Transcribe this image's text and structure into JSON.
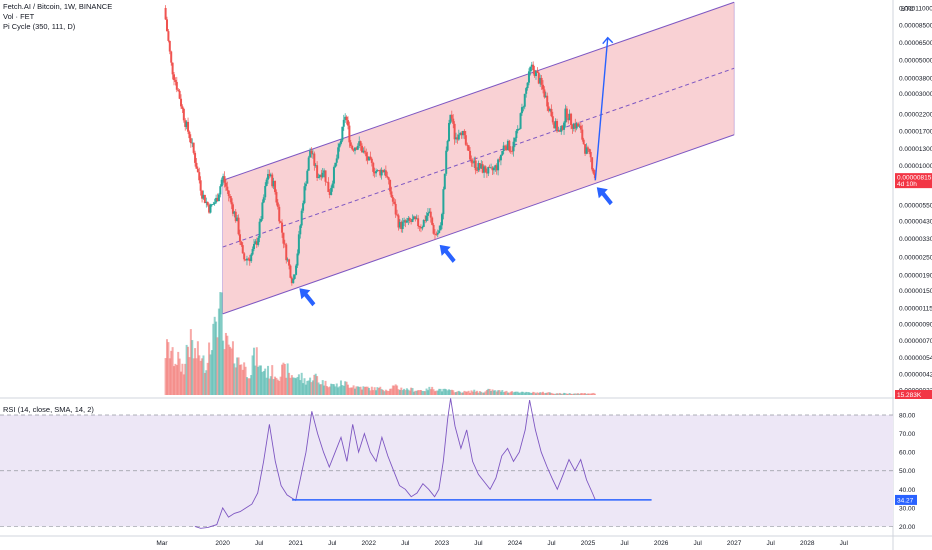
{
  "header": {
    "title": "Fetch.AI / Bitcoin, 1W, BINANCE",
    "vol": "Vol · FET",
    "pi": "Pi Cycle (350, 111, D)",
    "currency": "BTC",
    "rsi_label": "RSI (14, close, SMA, 14, 2)"
  },
  "price_tag": {
    "value": "0.00000815",
    "countdown": "4d 10h",
    "color": "#f23645"
  },
  "vol_tag": {
    "value": "15.283K",
    "color": "#f23645"
  },
  "rsi_tag": {
    "value": "34.27",
    "color": "#2962ff"
  },
  "chart_data": [
    {
      "type": "candlestick",
      "ylabel": "BTC",
      "y_scale": "log",
      "price_ticks": [
        "0.00011000",
        "0.00008500",
        "0.00006500",
        "0.00005000",
        "0.00003800",
        "0.00003000",
        "0.00002200",
        "0.00001700",
        "0.00001300",
        "0.00001000",
        "0.00000750",
        "0.00000550",
        "0.00000430",
        "0.00000330",
        "0.00000250",
        "0.00000190",
        "0.00000150",
        "0.00000115",
        "0.00000090",
        "0.00000070",
        "0.00000054",
        "0.00000042",
        "0.00000033"
      ],
      "x_ticks": [
        "Mar",
        "2020",
        "Jul",
        "2021",
        "Jul",
        "2022",
        "Jul",
        "2023",
        "Jul",
        "2024",
        "Jul",
        "2025",
        "Jul",
        "2026",
        "Jul",
        "2027",
        "Jul",
        "2028",
        "Jul"
      ],
      "colors": {
        "up": "#26a69a",
        "down": "#ef5350",
        "channel_fill": "#f8c9cc",
        "channel_line": "#7e57c2",
        "projection": "#2962ff"
      },
      "series": [
        {
          "values": [
            [
              2019.2,
              0.00011
            ],
            [
              2019.3,
              4.5e-05
            ],
            [
              2019.4,
              3e-05
            ],
            [
              2019.48,
              2e-05
            ],
            [
              2019.56,
              1.5e-05
            ],
            [
              2019.64,
              1e-05
            ],
            [
              2019.72,
              6.5e-06
            ],
            [
              2019.82,
              5.2e-06
            ],
            [
              2019.92,
              6e-06
            ],
            [
              2020.0,
              8.5e-06
            ],
            [
              2020.1,
              6e-06
            ],
            [
              2020.2,
              4.2e-06
            ],
            [
              2020.28,
              2.4e-06
            ],
            [
              2020.38,
              2.5e-06
            ],
            [
              2020.48,
              3.3e-06
            ],
            [
              2020.56,
              6e-06
            ],
            [
              2020.62,
              9e-06
            ],
            [
              2020.7,
              7.5e-06
            ],
            [
              2020.78,
              4.5e-06
            ],
            [
              2020.86,
              2.7e-06
            ],
            [
              2020.96,
              1.7e-06
            ],
            [
              2021.02,
              2.6e-06
            ],
            [
              2021.1,
              6e-06
            ],
            [
              2021.2,
              1.3e-05
            ],
            [
              2021.3,
              8.5e-06
            ],
            [
              2021.38,
              9.5e-06
            ],
            [
              2021.46,
              6.5e-06
            ],
            [
              2021.54,
              1e-05
            ],
            [
              2021.62,
              1.5e-05
            ],
            [
              2021.68,
              2.2e-05
            ],
            [
              2021.76,
              1.3e-05
            ],
            [
              2021.86,
              1.4e-05
            ],
            [
              2021.96,
              1.15e-05
            ],
            [
              2022.04,
              1e-05
            ],
            [
              2022.12,
              9e-06
            ],
            [
              2022.22,
              9.5e-06
            ],
            [
              2022.32,
              6e-06
            ],
            [
              2022.42,
              4e-06
            ],
            [
              2022.52,
              4.2e-06
            ],
            [
              2022.62,
              4.3e-06
            ],
            [
              2022.72,
              4e-06
            ],
            [
              2022.82,
              5e-06
            ],
            [
              2022.9,
              3.5e-06
            ],
            [
              2022.98,
              3.7e-06
            ],
            [
              2023.06,
              1.2e-05
            ],
            [
              2023.12,
              2.3e-05
            ],
            [
              2023.18,
              1.5e-05
            ],
            [
              2023.26,
              1.8e-05
            ],
            [
              2023.36,
              1.2e-05
            ],
            [
              2023.46,
              1e-05
            ],
            [
              2023.56,
              9.5e-06
            ],
            [
              2023.66,
              9e-06
            ],
            [
              2023.76,
              1e-05
            ],
            [
              2023.86,
              1.4e-05
            ],
            [
              2023.96,
              1.3e-05
            ],
            [
              2024.04,
              1.7e-05
            ],
            [
              2024.14,
              3e-05
            ],
            [
              2024.22,
              4.5e-05
            ],
            [
              2024.3,
              4e-05
            ],
            [
              2024.38,
              3.2e-05
            ],
            [
              2024.46,
              2.5e-05
            ],
            [
              2024.54,
              1.9e-05
            ],
            [
              2024.62,
              1.6e-05
            ],
            [
              2024.7,
              2.3e-05
            ],
            [
              2024.78,
              1.9e-05
            ],
            [
              2024.88,
              1.8e-05
            ],
            [
              2024.96,
              1.3e-05
            ],
            [
              2025.04,
              1.1e-05
            ],
            [
              2025.1,
              8.15e-06
            ]
          ]
        }
      ],
      "volume": [
        0.55,
        0.45,
        0.35,
        0.62,
        0.5,
        0.4,
        0.75,
        1.0,
        0.6,
        0.5,
        0.4,
        0.3,
        0.45,
        0.32,
        0.28,
        0.26,
        0.3,
        0.24,
        0.22,
        0.18,
        0.22,
        0.16,
        0.14,
        0.12,
        0.14,
        0.12,
        0.1,
        0.09,
        0.08,
        0.08,
        0.07,
        0.1,
        0.08,
        0.07,
        0.06,
        0.06,
        0.08,
        0.07,
        0.06,
        0.05,
        0.04,
        0.04,
        0.05,
        0.04,
        0.06,
        0.05,
        0.05,
        0.04,
        0.04,
        0.03,
        0.03,
        0.03,
        0.03,
        0.02,
        0.02,
        0.02,
        0.02,
        0.02,
        0.02
      ],
      "channel": {
        "upper": [
          [
            2020.0,
            8e-06
          ],
          [
            2027.0,
            0.00012
          ]
        ],
        "middle": [
          [
            2020.0,
            2.9e-06
          ],
          [
            2027.0,
            4.4e-05
          ]
        ],
        "lower": [
          [
            2020.0,
            1.05e-06
          ],
          [
            2027.0,
            1.6e-05
          ]
        ]
      },
      "projection": [
        [
          2025.1,
          8e-06
        ],
        [
          2025.27,
          7e-05
        ]
      ]
    },
    {
      "type": "line",
      "title": "RSI (14, close, SMA, 14, 2)",
      "ylim": [
        17,
        87
      ],
      "y_ticks": [
        "80.00",
        "70.00",
        "60.00",
        "50.00",
        "40.00",
        "30.00",
        "20.00"
      ],
      "levels": [
        80,
        50,
        20
      ],
      "support_level": 34.27,
      "colors": {
        "rsi": "#7e57c2",
        "band": "#ede7f6",
        "support": "#2962ff"
      },
      "series": [
        {
          "values": [
            [
              2019.62,
              20.0
            ],
            [
              2019.7,
              19.0
            ],
            [
              2019.8,
              19.5
            ],
            [
              2019.92,
              21.0
            ],
            [
              2020.0,
              30.0
            ],
            [
              2020.08,
              25.0
            ],
            [
              2020.16,
              27.0
            ],
            [
              2020.24,
              28.0
            ],
            [
              2020.32,
              30.0
            ],
            [
              2020.4,
              32.0
            ],
            [
              2020.48,
              38.0
            ],
            [
              2020.56,
              55.0
            ],
            [
              2020.64,
              75.0
            ],
            [
              2020.72,
              55.0
            ],
            [
              2020.8,
              42.0
            ],
            [
              2020.88,
              37.0
            ],
            [
              2020.96,
              35.0
            ],
            [
              2021.0,
              34.0
            ],
            [
              2021.06,
              45.0
            ],
            [
              2021.14,
              60.0
            ],
            [
              2021.22,
              82.0
            ],
            [
              2021.3,
              70.0
            ],
            [
              2021.38,
              60.0
            ],
            [
              2021.46,
              52.0
            ],
            [
              2021.54,
              60.0
            ],
            [
              2021.62,
              68.0
            ],
            [
              2021.7,
              55.0
            ],
            [
              2021.78,
              75.0
            ],
            [
              2021.86,
              60.0
            ],
            [
              2021.94,
              70.0
            ],
            [
              2022.02,
              60.0
            ],
            [
              2022.1,
              55.0
            ],
            [
              2022.18,
              68.0
            ],
            [
              2022.26,
              58.0
            ],
            [
              2022.34,
              50.0
            ],
            [
              2022.42,
              42.0
            ],
            [
              2022.5,
              40.0
            ],
            [
              2022.58,
              36.0
            ],
            [
              2022.66,
              38.0
            ],
            [
              2022.74,
              43.0
            ],
            [
              2022.82,
              40.0
            ],
            [
              2022.9,
              36.0
            ],
            [
              2022.96,
              40.0
            ],
            [
              2023.02,
              55.0
            ],
            [
              2023.08,
              78.0
            ],
            [
              2023.12,
              89.0
            ],
            [
              2023.18,
              74.0
            ],
            [
              2023.26,
              62.0
            ],
            [
              2023.34,
              72.0
            ],
            [
              2023.42,
              55.0
            ],
            [
              2023.5,
              48.0
            ],
            [
              2023.58,
              44.0
            ],
            [
              2023.66,
              40.0
            ],
            [
              2023.74,
              46.0
            ],
            [
              2023.82,
              58.0
            ],
            [
              2023.9,
              62.0
            ],
            [
              2023.98,
              55.0
            ],
            [
              2024.06,
              60.0
            ],
            [
              2024.14,
              72.0
            ],
            [
              2024.2,
              88.0
            ],
            [
              2024.28,
              72.0
            ],
            [
              2024.36,
              60.0
            ],
            [
              2024.44,
              52.0
            ],
            [
              2024.52,
              45.0
            ],
            [
              2024.58,
              40.0
            ],
            [
              2024.66,
              48.0
            ],
            [
              2024.74,
              56.0
            ],
            [
              2024.82,
              50.0
            ],
            [
              2024.9,
              56.0
            ],
            [
              2024.98,
              45.0
            ],
            [
              2025.06,
              38.0
            ],
            [
              2025.1,
              34.27
            ]
          ]
        }
      ]
    }
  ]
}
